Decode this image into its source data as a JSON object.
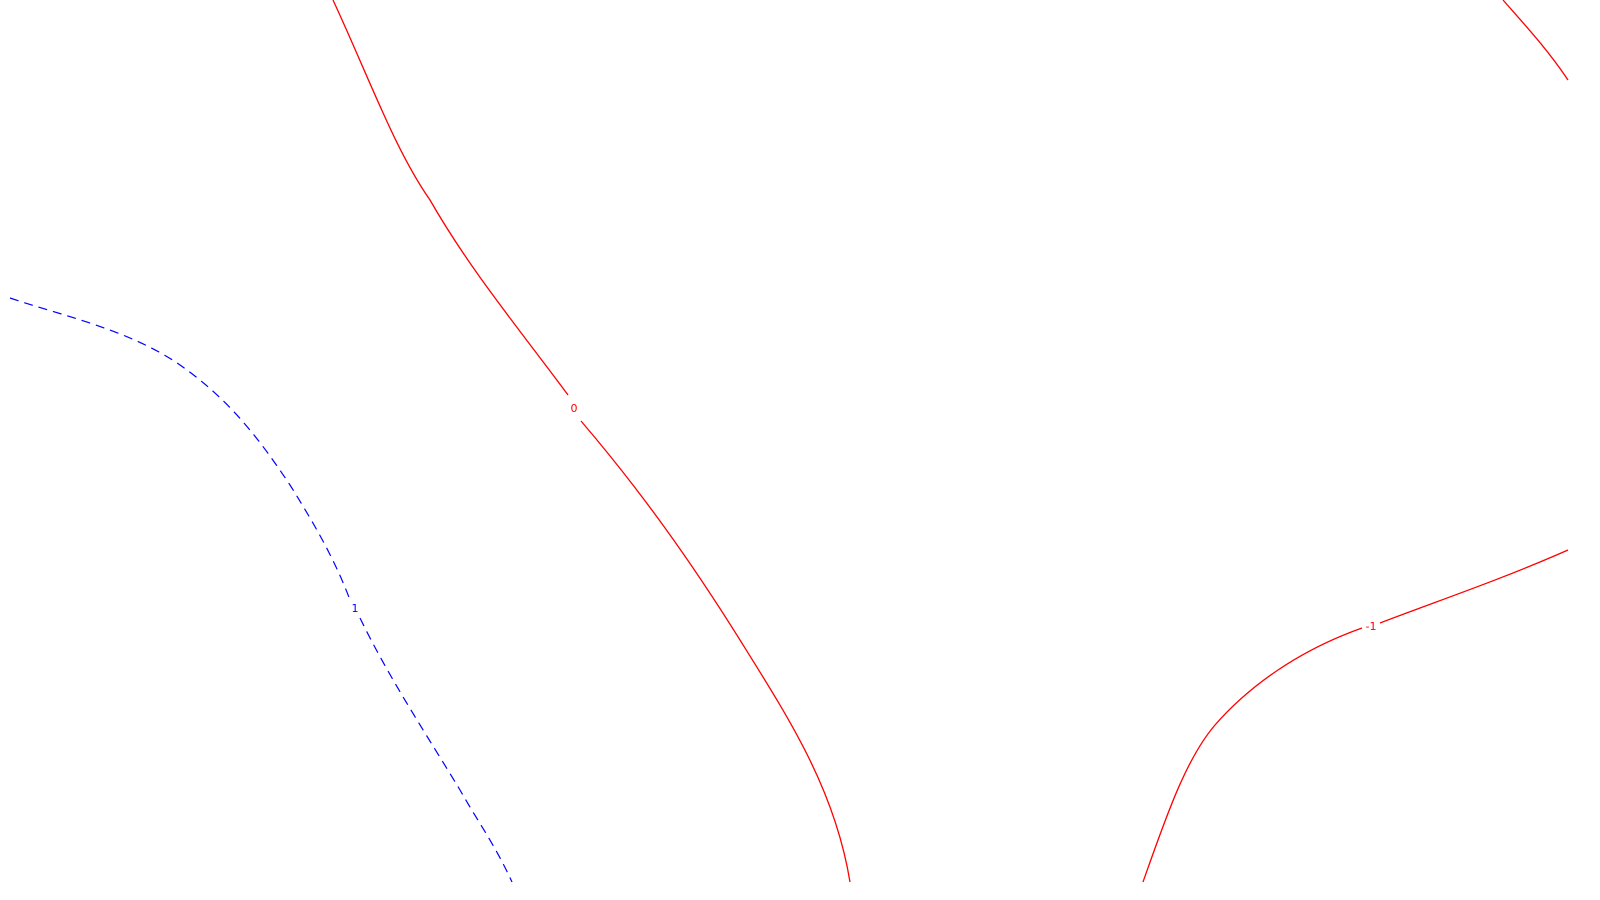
{
  "map": {
    "background": "#ffffff",
    "contours": [
      {
        "level_label": "0",
        "color": "#ff0000",
        "line_style": "solid"
      },
      {
        "level_label": "-1",
        "color": "#ff0000",
        "line_style": "solid"
      },
      {
        "level_label": "1",
        "color": "#0000ff",
        "line_style": "dashed"
      },
      {
        "level_label": "",
        "color": "#ff0000",
        "line_style": "solid"
      }
    ]
  }
}
